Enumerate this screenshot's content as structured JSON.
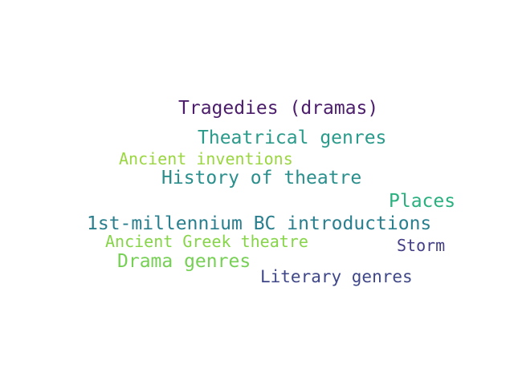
{
  "word_cloud": {
    "words": [
      {
        "text": "Tragedies (dramas)",
        "color": "#4b1d6b"
      },
      {
        "text": "Theatrical genres",
        "color": "#2a9a8a"
      },
      {
        "text": "Ancient inventions",
        "color": "#9ad640"
      },
      {
        "text": "History of theatre",
        "color": "#2a8f8c"
      },
      {
        "text": "Places",
        "color": "#2ab07f"
      },
      {
        "text": "1st-millennium BC introductions",
        "color": "#2a7f8e"
      },
      {
        "text": "Ancient Greek theatre",
        "color": "#86d549"
      },
      {
        "text": "Storm",
        "color": "#433e85"
      },
      {
        "text": "Drama genres",
        "color": "#75d054"
      },
      {
        "text": "Literary genres",
        "color": "#3f4788"
      }
    ]
  }
}
